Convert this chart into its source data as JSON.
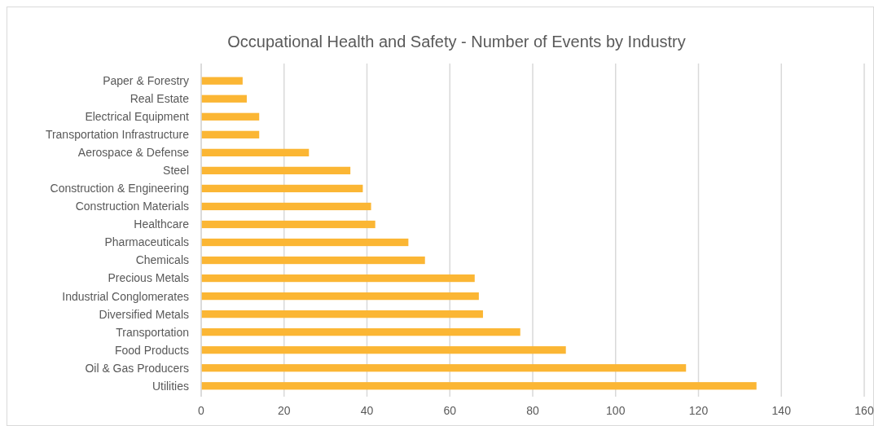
{
  "chart_data": {
    "type": "bar",
    "orientation": "horizontal",
    "title": "Occupational Health and Safety - Number of Events by Industry",
    "categories": [
      "Paper & Forestry",
      "Real Estate",
      "Electrical Equipment",
      "Transportation Infrastructure",
      "Aerospace & Defense",
      "Steel",
      "Construction & Engineering",
      "Construction Materials",
      "Healthcare",
      "Pharmaceuticals",
      "Chemicals",
      "Precious Metals",
      "Industrial Conglomerates",
      "Diversified Metals",
      "Transportation",
      "Food Products",
      "Oil & Gas Producers",
      "Utilities"
    ],
    "values": [
      10,
      11,
      14,
      14,
      26,
      36,
      39,
      41,
      42,
      50,
      54,
      66,
      67,
      68,
      77,
      88,
      117,
      134
    ],
    "color": "#fbb634",
    "xlim": [
      0,
      160
    ],
    "xticks": [
      0,
      20,
      40,
      60,
      80,
      100,
      120,
      140,
      160
    ],
    "grid": "x"
  }
}
